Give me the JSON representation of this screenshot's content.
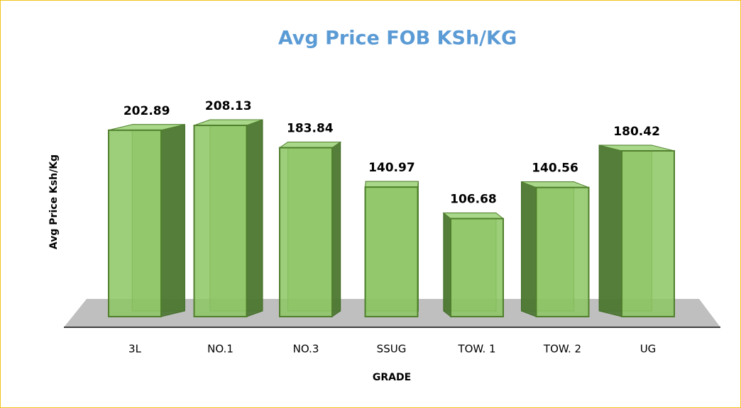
{
  "chart_data": {
    "type": "bar3d",
    "title": "Avg Price FOB KSh/KG",
    "x_label": "GRADE",
    "y_label": "Avg Price Ksh/Kg",
    "categories": [
      "3L",
      "NO.1",
      "NO.3",
      "SSUG",
      "TOW. 1",
      "TOW. 2",
      "UG"
    ],
    "values": [
      202.89,
      208.13,
      183.84,
      140.97,
      106.68,
      140.56,
      180.42
    ],
    "value_labels": [
      "202.89",
      "208.13",
      "183.84",
      "140.97",
      "106.68",
      "140.56",
      "180.42"
    ],
    "color": "#8cc663"
  }
}
